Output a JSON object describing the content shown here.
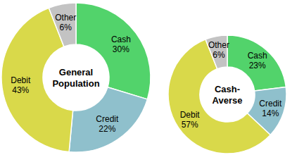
{
  "chart_data": [
    {
      "type": "pie",
      "title": "General Population",
      "categories": [
        "Cash",
        "Credit",
        "Debit",
        "Other"
      ],
      "values": [
        30,
        22,
        43,
        6
      ],
      "value_labels": [
        "30%",
        "22%",
        "43%",
        "6%"
      ],
      "colors": [
        "#52d36b",
        "#8fc0cc",
        "#d9d94a",
        "#c3c3c3"
      ],
      "data_labels": true
    },
    {
      "type": "pie",
      "title": "Cash-Averse",
      "categories": [
        "Cash",
        "Credit",
        "Debit",
        "Other"
      ],
      "values": [
        23,
        14,
        57,
        6
      ],
      "value_labels": [
        "23%",
        "14%",
        "57%",
        "6%"
      ],
      "colors": [
        "#52d36b",
        "#8fc0cc",
        "#d9d94a",
        "#c3c3c3"
      ],
      "data_labels": true
    }
  ]
}
